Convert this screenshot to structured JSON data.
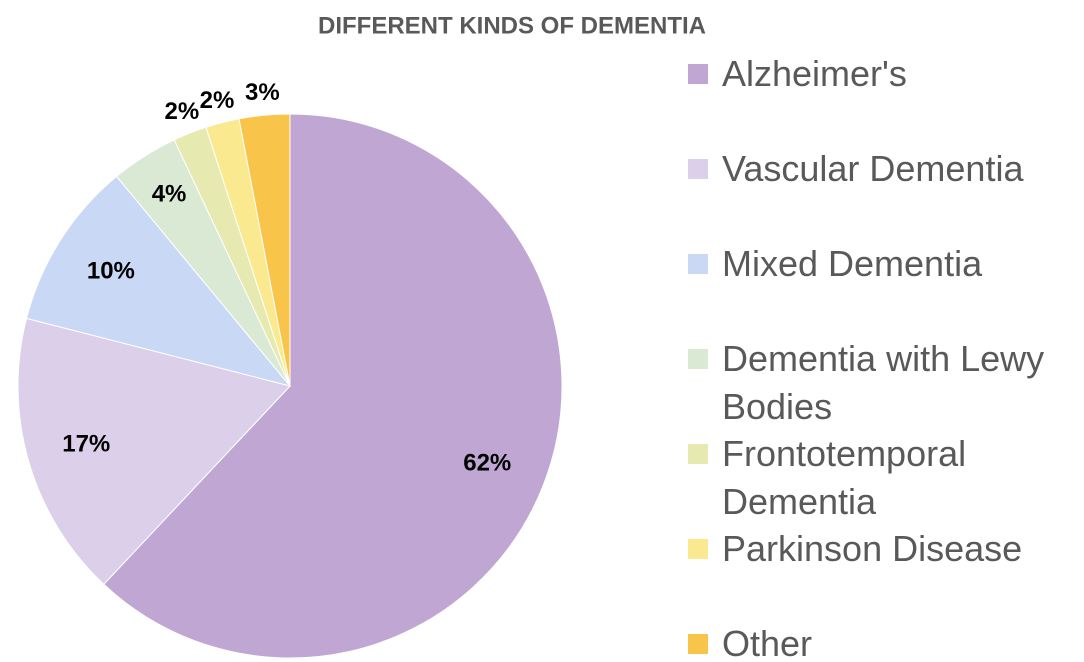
{
  "chart_data": {
    "type": "pie",
    "title": "DIFFERENT KINDS OF DEMENTIA",
    "categories": [
      "Alzheimer's",
      "Vascular Dementia",
      "Mixed Dementia",
      "Dementia with Lewy Bodies",
      "Frontotemporal Dementia",
      "Parkinson Disease",
      "Other"
    ],
    "values": [
      62,
      17,
      10,
      4,
      2,
      2,
      3
    ],
    "value_labels": [
      "62%",
      "17%",
      "10%",
      "4%",
      "2%",
      "2%",
      "3%"
    ],
    "colors": [
      "#c0a7d3",
      "#dccfe9",
      "#c9d8f5",
      "#d9e9d3",
      "#e6e9b0",
      "#fbe98f",
      "#f8c44a"
    ],
    "legend": "right"
  }
}
